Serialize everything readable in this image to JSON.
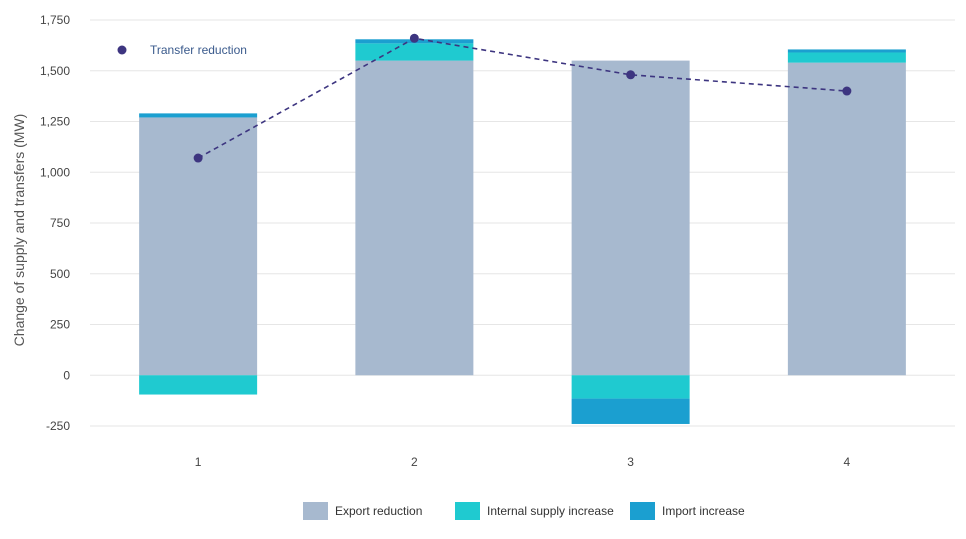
{
  "chart_data": {
    "type": "bar",
    "ylabel": "Change of supply and transfers (MW)",
    "ylim": [
      -250,
      1750
    ],
    "yticks": [
      -250,
      0,
      250,
      500,
      750,
      1000,
      1250,
      1500,
      1750
    ],
    "ytick_labels": [
      "-250",
      "0",
      "250",
      "500",
      "750",
      "1,000",
      "1,250",
      "1,500",
      "1,750"
    ],
    "categories": [
      "1",
      "2",
      "3",
      "4"
    ],
    "grid": true,
    "stacked": true,
    "bar_series": [
      {
        "name": "Export reduction",
        "values": [
          1270,
          1550,
          1550,
          1540
        ],
        "color": "#a7b9cf"
      },
      {
        "name": "Internal supply increase",
        "values": [
          -95,
          85,
          -115,
          50
        ],
        "color": "#1fcad0"
      },
      {
        "name": "Import increase",
        "values": [
          20,
          20,
          -125,
          15
        ],
        "color": "#1b9fd0"
      }
    ],
    "line_series": {
      "name": "Transfer reduction",
      "values": [
        1070,
        1660,
        1480,
        1400
      ],
      "color": "#3d3580",
      "style": "dashed"
    },
    "legend_placement": "bottom"
  }
}
